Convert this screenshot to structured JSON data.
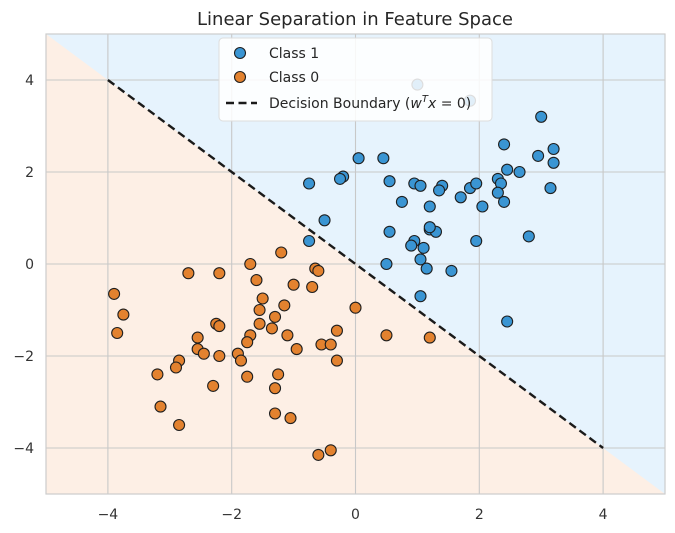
{
  "chart_data": {
    "type": "scatter",
    "title": "Linear Separation in Feature Space",
    "xlabel": "",
    "ylabel": "",
    "xlim": [
      -5,
      5
    ],
    "ylim": [
      -5,
      5
    ],
    "xticks": [
      -4,
      -2,
      0,
      2,
      4
    ],
    "yticks": [
      -4,
      -2,
      0,
      2,
      4
    ],
    "x_tick_labels": [
      "−4",
      "−2",
      "0",
      "2",
      "4"
    ],
    "y_tick_labels": [
      "−4",
      "−2",
      "0",
      "2",
      "4"
    ],
    "grid": true,
    "legend_position": "top-center",
    "region_colors": {
      "class_1": "#e6f3fd",
      "class_0": "#fdefe5"
    },
    "series": [
      {
        "name": "Class 1",
        "color": "#3a95d3",
        "points": [
          [
            1.0,
            3.9
          ],
          [
            3.0,
            3.2
          ],
          [
            1.85,
            3.55
          ],
          [
            2.4,
            2.6
          ],
          [
            3.2,
            2.5
          ],
          [
            0.45,
            2.3
          ],
          [
            0.05,
            2.3
          ],
          [
            2.95,
            2.35
          ],
          [
            3.2,
            2.2
          ],
          [
            2.45,
            2.05
          ],
          [
            2.65,
            2.0
          ],
          [
            -0.2,
            1.9
          ],
          [
            -0.25,
            1.85
          ],
          [
            -0.75,
            1.75
          ],
          [
            0.55,
            1.8
          ],
          [
            0.95,
            1.75
          ],
          [
            1.05,
            1.7
          ],
          [
            1.4,
            1.7
          ],
          [
            1.35,
            1.6
          ],
          [
            1.85,
            1.65
          ],
          [
            1.95,
            1.75
          ],
          [
            2.3,
            1.85
          ],
          [
            2.35,
            1.75
          ],
          [
            2.3,
            1.55
          ],
          [
            3.15,
            1.65
          ],
          [
            1.7,
            1.45
          ],
          [
            0.75,
            1.35
          ],
          [
            1.2,
            1.25
          ],
          [
            2.05,
            1.25
          ],
          [
            2.4,
            1.35
          ],
          [
            -0.5,
            0.95
          ],
          [
            1.2,
            0.75
          ],
          [
            1.3,
            0.7
          ],
          [
            1.2,
            0.8
          ],
          [
            0.55,
            0.7
          ],
          [
            2.8,
            0.6
          ],
          [
            1.95,
            0.5
          ],
          [
            0.95,
            0.5
          ],
          [
            0.9,
            0.4
          ],
          [
            1.1,
            0.35
          ],
          [
            -0.75,
            0.5
          ],
          [
            1.05,
            0.1
          ],
          [
            0.5,
            0.0
          ],
          [
            1.15,
            -0.1
          ],
          [
            1.55,
            -0.15
          ],
          [
            1.05,
            -0.7
          ],
          [
            2.45,
            -1.25
          ]
        ]
      },
      {
        "name": "Class 0",
        "color": "#e3822f",
        "points": [
          [
            -1.2,
            0.25
          ],
          [
            -1.7,
            0.0
          ],
          [
            -0.65,
            -0.1
          ],
          [
            -0.6,
            -0.15
          ],
          [
            -2.7,
            -0.2
          ],
          [
            -2.2,
            -0.2
          ],
          [
            -1.6,
            -0.35
          ],
          [
            -1.0,
            -0.45
          ],
          [
            -0.7,
            -0.5
          ],
          [
            -3.9,
            -0.65
          ],
          [
            -1.5,
            -0.75
          ],
          [
            -3.85,
            -1.5
          ],
          [
            -3.75,
            -1.1
          ],
          [
            -1.55,
            -1.0
          ],
          [
            -1.15,
            -0.9
          ],
          [
            0.0,
            -0.95
          ],
          [
            -1.7,
            -1.55
          ],
          [
            -1.75,
            -1.7
          ],
          [
            -1.3,
            -1.15
          ],
          [
            -2.25,
            -1.3
          ],
          [
            -2.2,
            -1.35
          ],
          [
            -1.55,
            -1.3
          ],
          [
            -1.35,
            -1.4
          ],
          [
            -1.1,
            -1.55
          ],
          [
            -0.3,
            -1.45
          ],
          [
            0.5,
            -1.55
          ],
          [
            1.2,
            -1.6
          ],
          [
            -2.55,
            -1.6
          ],
          [
            -2.55,
            -1.85
          ],
          [
            -2.45,
            -1.95
          ],
          [
            -2.2,
            -2.0
          ],
          [
            -1.9,
            -1.95
          ],
          [
            -1.85,
            -2.1
          ],
          [
            -0.95,
            -1.85
          ],
          [
            -0.55,
            -1.75
          ],
          [
            -0.4,
            -1.75
          ],
          [
            -2.85,
            -2.1
          ],
          [
            -0.3,
            -2.1
          ],
          [
            -2.9,
            -2.25
          ],
          [
            -3.2,
            -2.4
          ],
          [
            -1.75,
            -2.45
          ],
          [
            -1.25,
            -2.4
          ],
          [
            -2.3,
            -2.65
          ],
          [
            -1.3,
            -2.7
          ],
          [
            -3.15,
            -3.1
          ],
          [
            -1.3,
            -3.25
          ],
          [
            -1.05,
            -3.35
          ],
          [
            -2.85,
            -3.5
          ],
          [
            -0.6,
            -4.15
          ],
          [
            -0.4,
            -4.05
          ]
        ]
      }
    ],
    "decision_boundary": {
      "name": "Decision Boundary (w^T x = 0)",
      "x": [
        -4,
        4
      ],
      "y": [
        4,
        -4
      ],
      "color": "#1a1a1a",
      "style": "dashed"
    },
    "legend": {
      "items": [
        "Class 1",
        "Class 0",
        "Decision Boundary"
      ],
      "boundary_label_prefix": "Decision Boundary (",
      "boundary_label_w": "w",
      "boundary_label_T": "T",
      "boundary_label_x": "x",
      "boundary_label_suffix": " = 0)"
    }
  }
}
